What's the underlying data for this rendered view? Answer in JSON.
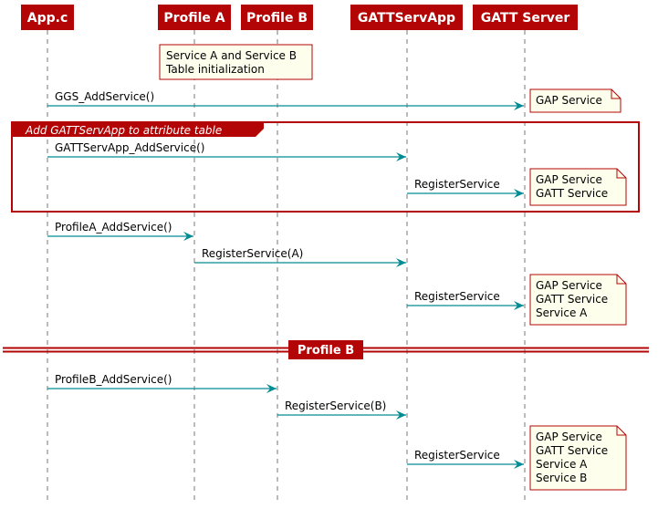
{
  "colors": {
    "accent": "#b30505",
    "arrow": "#038c94",
    "note_fill": "#fefeec"
  },
  "participants": [
    "App.c",
    "Profile A",
    "Profile B",
    "GATTServApp",
    "GATT Server"
  ],
  "top_note": [
    "Service A and Service B",
    "Table initialization"
  ],
  "group": {
    "label": "Add GATTServApp to attribute table"
  },
  "divider": {
    "label": "Profile B"
  },
  "messages": [
    {
      "from": 0,
      "to": 4,
      "label": "GGS_AddService()"
    },
    {
      "from": 0,
      "to": 3,
      "label": "GATTServApp_AddService()"
    },
    {
      "from": 3,
      "to": 4,
      "label": "RegisterService"
    },
    {
      "from": 0,
      "to": 1,
      "label": "ProfileA_AddService()"
    },
    {
      "from": 1,
      "to": 3,
      "label": "RegisterService(A)"
    },
    {
      "from": 3,
      "to": 4,
      "label": "RegisterService"
    },
    {
      "from": 0,
      "to": 2,
      "label": "ProfileB_AddService()"
    },
    {
      "from": 2,
      "to": 3,
      "label": "RegisterService(B)"
    },
    {
      "from": 3,
      "to": 4,
      "label": "RegisterService"
    }
  ],
  "notes": [
    [
      "GAP Service"
    ],
    [
      "GAP Service",
      "GATT Service"
    ],
    [
      "GAP Service",
      "GATT Service",
      "Service A"
    ],
    [
      "GAP Service",
      "GATT Service",
      "Service A",
      "Service B"
    ]
  ]
}
